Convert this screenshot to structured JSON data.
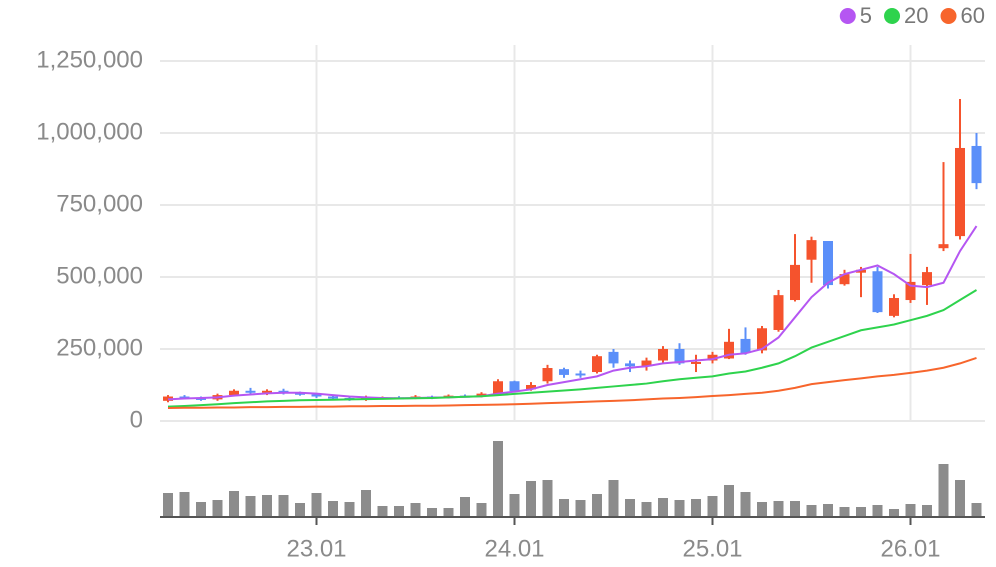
{
  "chart_data": {
    "type": "candlestick",
    "categories": [
      null,
      null,
      null,
      null,
      null,
      null,
      null,
      null,
      null,
      "23.01",
      null,
      null,
      null,
      null,
      null,
      null,
      null,
      null,
      null,
      null,
      null,
      "24.01",
      null,
      null,
      null,
      null,
      null,
      null,
      null,
      null,
      null,
      null,
      null,
      "25.01",
      null,
      null,
      null,
      null,
      null,
      null,
      null,
      null,
      null,
      null,
      null,
      "26.01",
      null,
      null,
      null,
      null
    ],
    "open": [
      70000,
      85000,
      80000,
      75000,
      90000,
      105000,
      100000,
      105000,
      98000,
      92000,
      85000,
      80000,
      75000,
      80000,
      82000,
      80000,
      85000,
      80000,
      88000,
      85000,
      95000,
      138000,
      110000,
      138000,
      180000,
      165000,
      170000,
      240000,
      200000,
      190000,
      210000,
      250000,
      200000,
      210000,
      217000,
      285000,
      245000,
      316000,
      420000,
      560000,
      625000,
      475000,
      515000,
      520000,
      365000,
      420000,
      472000,
      600000,
      642000,
      955000
    ],
    "high": [
      90000,
      90000,
      85000,
      95000,
      110000,
      115000,
      110000,
      112000,
      102000,
      95000,
      90000,
      85000,
      88000,
      85000,
      86000,
      90000,
      88000,
      92000,
      92000,
      100000,
      145000,
      140000,
      135000,
      195000,
      185000,
      175000,
      230000,
      250000,
      210000,
      220000,
      260000,
      270000,
      230000,
      240000,
      320000,
      325000,
      330000,
      455000,
      649000,
      640000,
      625000,
      525000,
      535000,
      535000,
      440000,
      580000,
      535000,
      899000,
      1118000,
      1000000
    ],
    "low": [
      65000,
      75000,
      70000,
      70000,
      85000,
      95000,
      90000,
      92000,
      88000,
      80000,
      75000,
      70000,
      70000,
      75000,
      76000,
      76000,
      76000,
      78000,
      82000,
      82000,
      90000,
      100000,
      105000,
      130000,
      150000,
      150000,
      165000,
      185000,
      170000,
      175000,
      200000,
      195000,
      170000,
      200000,
      215000,
      230000,
      235000,
      310000,
      415000,
      480000,
      460000,
      470000,
      430000,
      375000,
      360000,
      410000,
      403000,
      590000,
      630000,
      805000
    ],
    "close": [
      85000,
      80000,
      75000,
      90000,
      105000,
      100000,
      105000,
      98000,
      92000,
      85000,
      80000,
      75000,
      80000,
      82000,
      80000,
      85000,
      80000,
      88000,
      85000,
      95000,
      138000,
      104000,
      125000,
      184000,
      160000,
      160000,
      225000,
      200000,
      190000,
      210000,
      250000,
      200000,
      205000,
      230000,
      275000,
      236000,
      322000,
      437000,
      542000,
      628000,
      472000,
      510000,
      525000,
      378000,
      427000,
      483000,
      517000,
      614000,
      948000,
      826000
    ],
    "volume": [
      24,
      25,
      15,
      17,
      26,
      21,
      22,
      22,
      14,
      24,
      16,
      15,
      27,
      11,
      11,
      14,
      9,
      9,
      20,
      14,
      76,
      23,
      36,
      37,
      18,
      17,
      23,
      37,
      18,
      15,
      19,
      17,
      18,
      21,
      32,
      25,
      15,
      16,
      16,
      12,
      13,
      10,
      10,
      12,
      8,
      13,
      12,
      53,
      37,
      14
    ],
    "up_color": "#f5532d",
    "down_color": "#5b8ff9",
    "volume_color": "#8c8c8c",
    "series": [
      {
        "name": "5",
        "color": "#b556f2",
        "values": [
          75000,
          78000,
          80000,
          82000,
          88000,
          92000,
          96000,
          98000,
          98000,
          95000,
          90000,
          85000,
          82000,
          80000,
          79000,
          80000,
          81000,
          82000,
          84000,
          86000,
          95000,
          102000,
          110000,
          125000,
          135000,
          145000,
          155000,
          175000,
          185000,
          190000,
          200000,
          205000,
          210000,
          215000,
          230000,
          235000,
          250000,
          290000,
          360000,
          430000,
          480000,
          510000,
          525000,
          540000,
          510000,
          470000,
          465000,
          480000,
          590000,
          677000
        ]
      },
      {
        "name": "20",
        "color": "#2ed34d",
        "values": [
          50000,
          52000,
          55000,
          58000,
          62000,
          65000,
          68000,
          70000,
          72000,
          73000,
          74000,
          75000,
          76000,
          77000,
          78000,
          79000,
          80000,
          82000,
          84000,
          86000,
          90000,
          94000,
          98000,
          102000,
          106000,
          110000,
          115000,
          120000,
          125000,
          130000,
          138000,
          145000,
          150000,
          155000,
          165000,
          172000,
          185000,
          200000,
          225000,
          255000,
          275000,
          295000,
          315000,
          325000,
          335000,
          350000,
          365000,
          385000,
          420000,
          455000
        ]
      },
      {
        "name": "60",
        "color": "#f7652c",
        "values": [
          45000,
          46000,
          46000,
          47000,
          47000,
          48000,
          48000,
          49000,
          49000,
          50000,
          50000,
          51000,
          51000,
          52000,
          52000,
          53000,
          53000,
          54000,
          55000,
          56000,
          57000,
          58000,
          60000,
          62000,
          64000,
          66000,
          68000,
          70000,
          72000,
          75000,
          78000,
          80000,
          83000,
          87000,
          90000,
          94000,
          98000,
          105000,
          115000,
          128000,
          135000,
          142000,
          148000,
          155000,
          160000,
          167000,
          175000,
          185000,
          200000,
          219000
        ]
      }
    ],
    "ylim": [
      0,
      1250000
    ],
    "yticks": [
      0,
      {
        "value": 250000,
        "label": "250,000"
      },
      {
        "value": 500000,
        "label": "500,000"
      },
      {
        "value": 750000,
        "label": "750,000"
      },
      {
        "value": 1000000,
        "label": "1,000,000"
      },
      {
        "value": 1250000,
        "label": "1,250,000"
      }
    ],
    "grid": true,
    "legend": "top-right"
  }
}
